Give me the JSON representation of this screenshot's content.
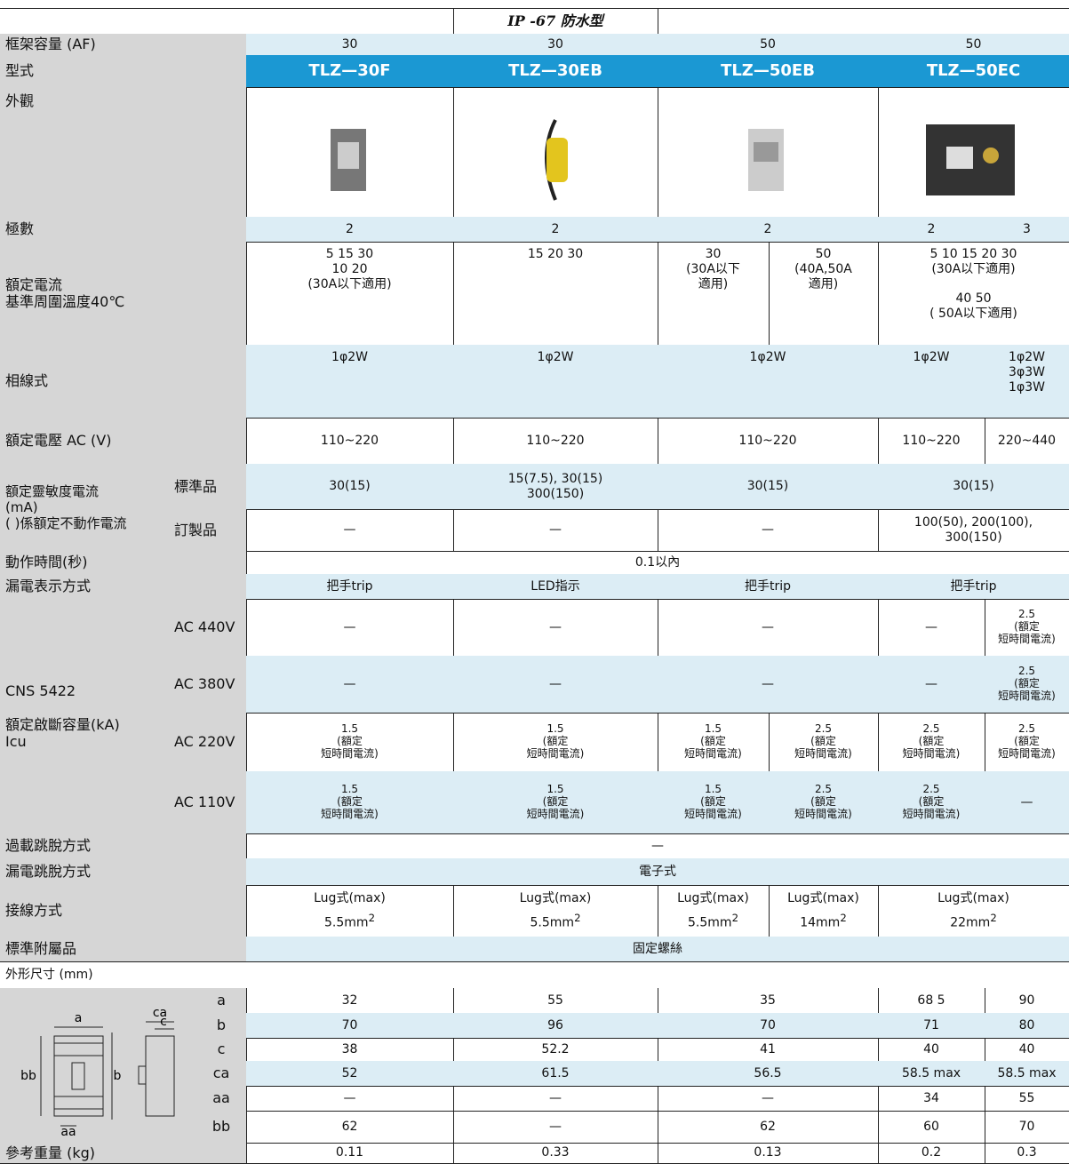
{
  "header": {
    "series": "IP -67 防水型"
  },
  "frame": {
    "label": "框架容量 (AF)",
    "values": [
      "30",
      "30",
      "50",
      "50"
    ]
  },
  "model": {
    "label": "型式",
    "values": [
      "TLZ—30F",
      "TLZ—30EB",
      "TLZ—50EB",
      "TLZ—50EC"
    ]
  },
  "appearance": {
    "label": "外觀"
  },
  "poles": {
    "label": "極數",
    "values": [
      "2",
      "2",
      "2",
      "2",
      "3"
    ]
  },
  "current": {
    "label": "額定電流\n基準周圍溫度40℃",
    "values": [
      "5   15   30\n10  20\n(30A以下適用)",
      "15 20 30",
      "30\n(30A以下\n適用)",
      "50\n(40A,50A\n適用)",
      "5  10  15  20  30\n(30A以下適用)\n\n40  50\n( 50A以下適用)"
    ]
  },
  "phase": {
    "label": "相線式",
    "values": [
      "1φ2W",
      "1φ2W",
      "1φ2W",
      "1φ2W",
      "1φ2W\n3φ3W\n1φ3W"
    ]
  },
  "voltage": {
    "label": "額定電壓 AC (V)",
    "values": [
      "110~220",
      "110~220",
      "110~220",
      "110~220",
      "220~440"
    ]
  },
  "sensitivity": {
    "label": "額定靈敏度電流\n(mA)\n( )係額定不動作電流",
    "standard": {
      "label": "標準品",
      "values": [
        "30(15)",
        "15(7.5), 30(15)\n300(150)",
        "30(15)",
        "30(15)"
      ]
    },
    "custom": {
      "label": "訂製品",
      "values": [
        "—",
        "—",
        "—",
        "100(50), 200(100),\n300(150)"
      ]
    }
  },
  "op_time": {
    "label": "動作時間(秒)",
    "value": "0.1以內"
  },
  "leak_display": {
    "label": "漏電表示方式",
    "values": [
      "把手trip",
      "LED指示",
      "把手trip",
      "把手trip"
    ]
  },
  "breaking": {
    "label": "CNS 5422\n\n額定啟斷容量(kA)\nIcu",
    "rows": [
      {
        "label": "AC 440V",
        "values": [
          "—",
          "—",
          "—",
          "—",
          "2.5\n(額定\n短時間電流)"
        ]
      },
      {
        "label": "AC 380V",
        "values": [
          "—",
          "—",
          "—",
          "—",
          "2.5\n(額定\n短時間電流)"
        ]
      },
      {
        "label": "AC 220V",
        "values": [
          "1.5\n(額定\n短時間電流)",
          "1.5\n(額定\n短時間電流)",
          "1.5\n(額定\n短時間電流)",
          "2.5\n(額定\n短時間電流)",
          "2.5\n(額定\n短時間電流)",
          "2.5\n(額定\n短時間電流)"
        ]
      },
      {
        "label": "AC 110V",
        "values": [
          "1.5\n(額定\n短時間電流)",
          "1.5\n(額定\n短時間電流)",
          "1.5\n(額定\n短時間電流)",
          "2.5\n(額定\n短時間電流)",
          "2.5\n(額定\n短時間電流)",
          "—"
        ]
      }
    ]
  },
  "overload": {
    "label": "過載跳脫方式",
    "value": "—"
  },
  "leak_trip": {
    "label": "漏電跳脫方式",
    "value": "電子式"
  },
  "wiring": {
    "label": "接線方式",
    "values": [
      {
        "type": "Lug式(max)",
        "size": "5.5mm",
        "sup": "2"
      },
      {
        "type": "Lug式(max)",
        "size": "5.5mm",
        "sup": "2"
      },
      {
        "type": "Lug式(max)",
        "size": "5.5mm",
        "sup": "2"
      },
      {
        "type": "Lug式(max)",
        "size": "14mm",
        "sup": "2"
      },
      {
        "type": "Lug式(max)",
        "size": "22mm",
        "sup": "2"
      }
    ]
  },
  "accessory": {
    "label": "標準附屬品",
    "value": "固定螺絲"
  },
  "dimensions": {
    "title": "外形尺寸 (mm)",
    "diagram": [
      "a",
      "ca",
      "c",
      "bb",
      "b",
      "aa"
    ],
    "rows": [
      {
        "label": "a",
        "values": [
          "32",
          "55",
          "35",
          "68 5",
          "90"
        ]
      },
      {
        "label": "b",
        "values": [
          "70",
          "96",
          "70",
          "71",
          "80"
        ]
      },
      {
        "label": "c",
        "values": [
          "38",
          "52.2",
          "41",
          "40",
          "40"
        ]
      },
      {
        "label": "ca",
        "values": [
          "52",
          "61.5",
          "56.5",
          "58.5 max",
          "58.5 max"
        ]
      },
      {
        "label": "aa",
        "values": [
          "—",
          "—",
          "—",
          "34",
          "55"
        ]
      },
      {
        "label": "bb",
        "values": [
          "62",
          "—",
          "62",
          "60",
          "70"
        ]
      }
    ]
  },
  "weight": {
    "label": "參考重量 (kg)",
    "values": [
      "0.11",
      "0.33",
      "0.13",
      "0.2",
      "0.3"
    ]
  }
}
